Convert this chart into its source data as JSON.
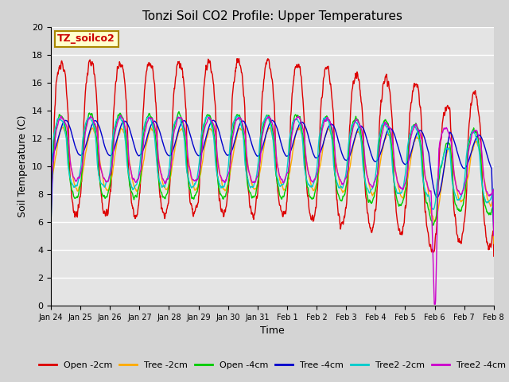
{
  "title": "Tonzi Soil CO2 Profile: Upper Temperatures",
  "xlabel": "Time",
  "ylabel": "Soil Temperature (C)",
  "ylim": [
    0,
    20
  ],
  "yticks": [
    0,
    2,
    4,
    6,
    8,
    10,
    12,
    14,
    16,
    18,
    20
  ],
  "annotation": "TZ_soilco2",
  "fig_bg": "#d8d8d8",
  "plot_bg": "#e0e0e0",
  "series": [
    {
      "label": "Open -2cm",
      "color": "#dd0000"
    },
    {
      "label": "Tree -2cm",
      "color": "#ffaa00"
    },
    {
      "label": "Open -4cm",
      "color": "#00cc00"
    },
    {
      "label": "Tree -4cm",
      "color": "#0000cc"
    },
    {
      "label": "Tree2 -2cm",
      "color": "#00cccc"
    },
    {
      "label": "Tree2 -4cm",
      "color": "#cc00cc"
    }
  ],
  "xtick_labels": [
    "Jan 24",
    "Jan 25",
    "Jan 26",
    "Jan 27",
    "Jan 28",
    "Jan 29",
    "Jan 30",
    "Jan 31",
    "Feb 1",
    "Feb 2",
    "Feb 3",
    "Feb 4",
    "Feb 5",
    "Feb 6",
    "Feb 7",
    "Feb 8"
  ],
  "n_points": 1440,
  "n_days": 15
}
